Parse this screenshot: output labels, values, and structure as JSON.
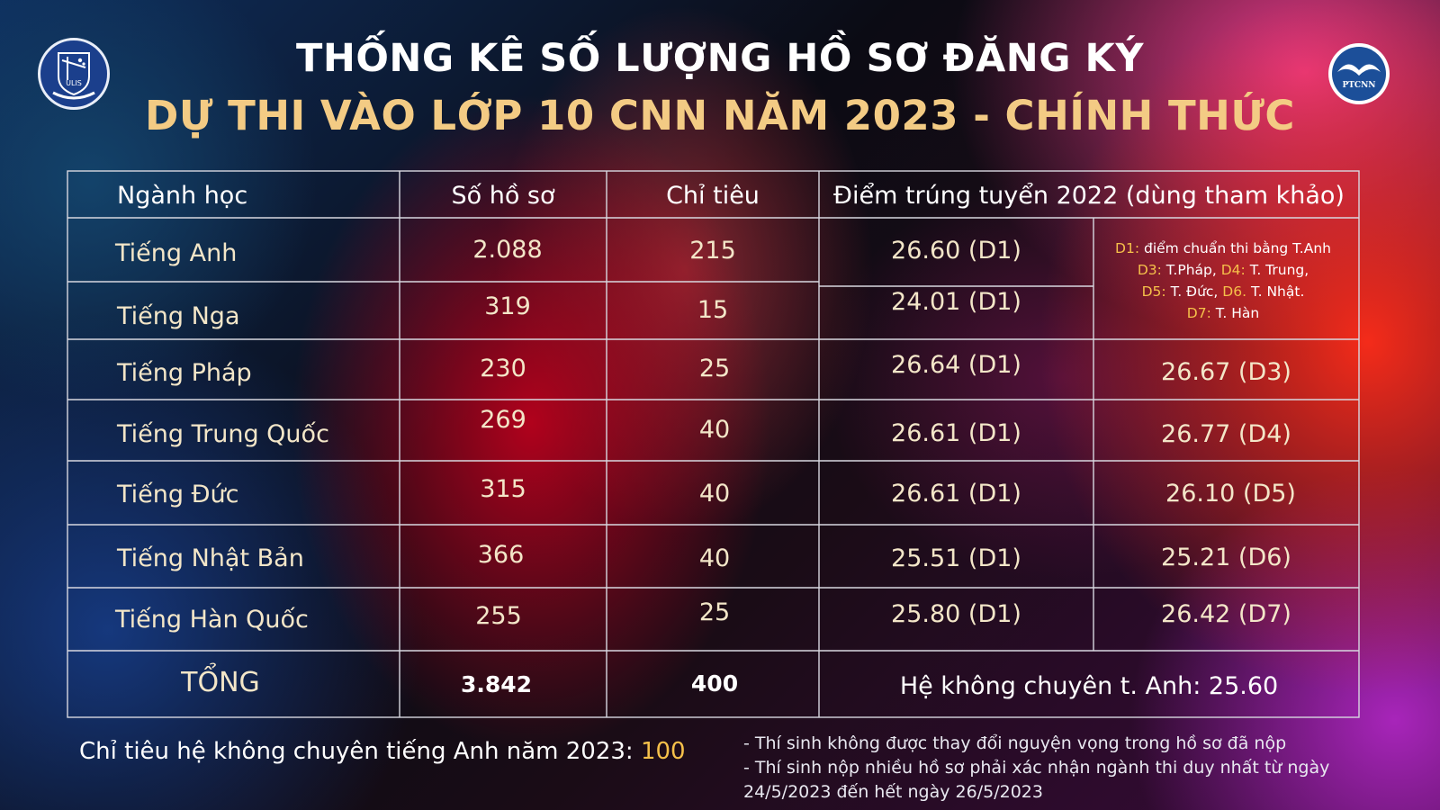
{
  "header": {
    "title_line1": "THỐNG KÊ SỐ LƯỢNG HỒ SƠ ĐĂNG KÝ",
    "title_line2": "DỰ THI VÀO LỚP 10 CNN NĂM 2023 - CHÍNH THỨC",
    "logo_left_text": "ULIS",
    "logo_right_text": "PTCNN"
  },
  "table": {
    "columns": [
      "Ngành học",
      "Số hồ sơ",
      "Chỉ tiêu",
      "Điểm trúng tuyển 2022 (dùng tham khảo)"
    ],
    "rows": [
      {
        "major": "Tiếng Anh",
        "applications": "2.088",
        "quota": "215",
        "score_d1": "26.60 (D1)",
        "score_other": ""
      },
      {
        "major": "Tiếng Nga",
        "applications": "319",
        "quota": "15",
        "score_d1": "24.01 (D1)",
        "score_other": ""
      },
      {
        "major": "Tiếng Pháp",
        "applications": "230",
        "quota": "25",
        "score_d1": "26.64 (D1)",
        "score_other": "26.67 (D3)"
      },
      {
        "major": "Tiếng Trung Quốc",
        "applications": "269",
        "quota": "40",
        "score_d1": "26.61 (D1)",
        "score_other": "26.77 (D4)"
      },
      {
        "major": "Tiếng Đức",
        "applications": "315",
        "quota": "40",
        "score_d1": "26.61 (D1)",
        "score_other": "26.10 (D5)"
      },
      {
        "major": "Tiếng Nhật Bản",
        "applications": "366",
        "quota": "40",
        "score_d1": "25.51 (D1)",
        "score_other": "25.21 (D6)"
      },
      {
        "major": "Tiếng Hàn Quốc",
        "applications": "255",
        "quota": "25",
        "score_d1": "25.80 (D1)",
        "score_other": "26.42 (D7)"
      }
    ],
    "total": {
      "label": "TỔNG",
      "applications": "3.842",
      "quota": "400",
      "note": "Hệ không chuyên t. Anh: 25.60"
    },
    "legend": {
      "d1_code": "D1:",
      "d1_text": "điểm chuẩn thi bằng T.Anh",
      "d3_code": "D3:",
      "d3_text": "T.Pháp,",
      "d4_code": "D4:",
      "d4_text": "T. Trung,",
      "d5_code": "D5:",
      "d5_text": "T. Đức,",
      "d6_code": "D6.",
      "d6_text": "T. Nhật.",
      "d7_code": "D7:",
      "d7_text": "T. Hàn"
    }
  },
  "footer": {
    "quota_text": "Chỉ tiêu hệ không chuyên tiếng Anh năm 2023:",
    "quota_value": "100",
    "note1": "- Thí sinh không được thay đổi nguyện vọng trong hồ sơ đã nộp",
    "note2": "- Thí sinh nộp nhiều hồ sơ phải xác nhận ngành thi duy nhất từ ngày",
    "note3": "24/5/2023 đến hết ngày 26/5/2023"
  },
  "colors": {
    "title_gold": "#f3cb84",
    "cell_text": "#f3e6c8",
    "code_highlight": "#f5c04a"
  }
}
